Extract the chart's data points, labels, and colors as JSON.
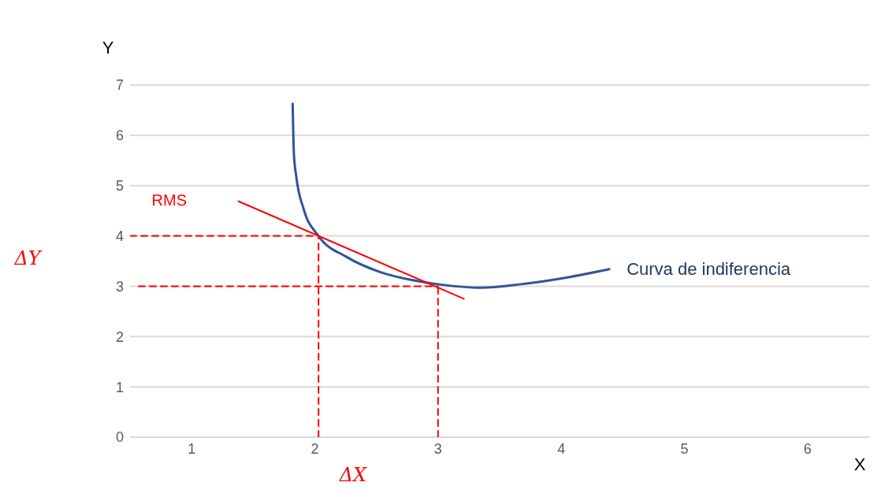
{
  "chart_data": {
    "type": "line",
    "xlabel": "X",
    "ylabel": "Y",
    "xlim": [
      0.5,
      6.5
    ],
    "xticks": [
      1,
      2,
      3,
      4,
      5,
      6
    ],
    "ylim": [
      0,
      7
    ],
    "yticks": [
      0,
      1,
      2,
      3,
      4,
      5,
      6,
      7
    ],
    "grid": "y",
    "legend": false,
    "marker": "none",
    "series": [
      {
        "name": "Curva de indiferencia",
        "color": "#2f5597",
        "line_style": "solid",
        "x": [
          1.82,
          1.83,
          1.85,
          1.91,
          2.03,
          2.26,
          2.52,
          2.84,
          3.0,
          3.35,
          3.67,
          4.06,
          4.39
        ],
        "values": [
          6.63,
          5.64,
          5.17,
          4.53,
          4.0,
          3.58,
          3.29,
          3.1,
          3.04,
          2.97,
          3.04,
          3.18,
          3.34
        ]
      },
      {
        "name": "RMS",
        "color": "#ff0000",
        "line_style": "solid",
        "x": [
          1.38,
          3.21
        ],
        "values": [
          4.69,
          2.75
        ]
      },
      {
        "color": "#ff0000",
        "line_style": "dashed",
        "x": [
          0.5,
          2.03
        ],
        "values": [
          4,
          4
        ]
      },
      {
        "color": "#ff0000",
        "line_style": "dashed",
        "x": [
          0.57,
          3.0
        ],
        "values": [
          3,
          3
        ]
      },
      {
        "color": "#ff0000",
        "line_style": "dashed",
        "x": [
          2.03,
          2.03
        ],
        "values": [
          0,
          4
        ]
      },
      {
        "color": "#ff0000",
        "line_style": "dashed",
        "x": [
          3.0,
          3.0
        ],
        "values": [
          0,
          3
        ]
      }
    ],
    "annotations": [
      "ΔY",
      "ΔX"
    ]
  }
}
